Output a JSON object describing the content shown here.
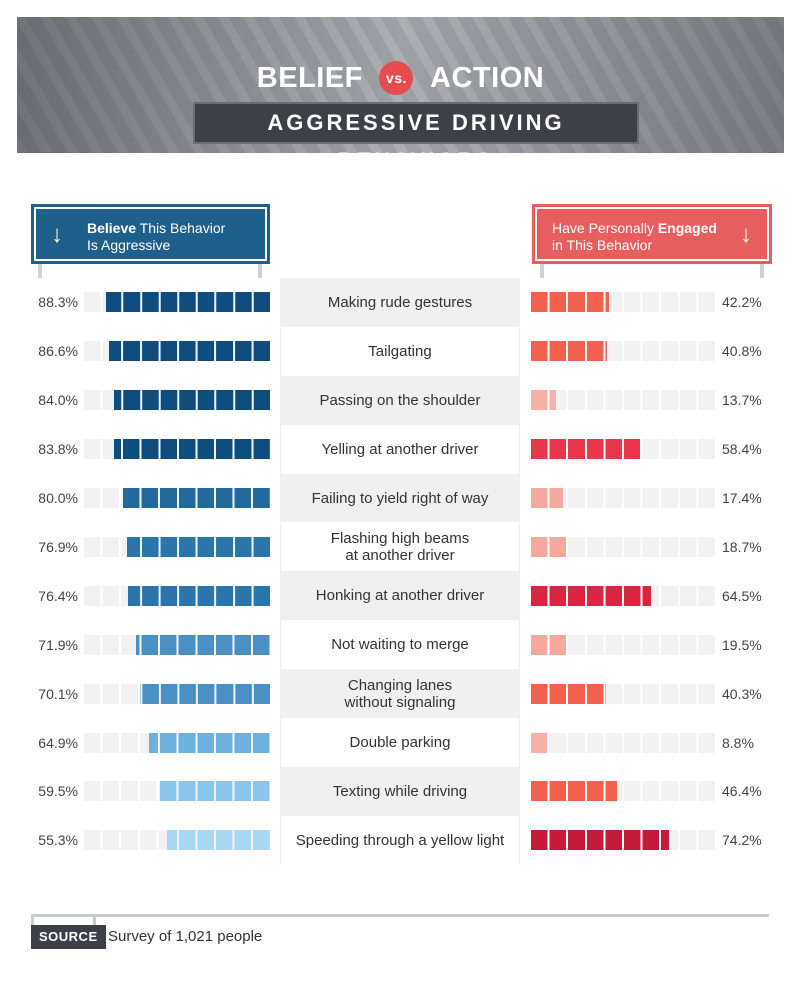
{
  "header": {
    "title_left": "BELIEF",
    "vs": "vs.",
    "title_right": "ACTION",
    "subtitle": "AGGRESSIVE DRIVING BEHAVIORS"
  },
  "signs": {
    "left_bold": "Believe",
    "left_rest_1": " This Behavior",
    "left_line2": "Is Aggressive",
    "right_line1_pre": "Have Personally ",
    "right_bold": "Engaged",
    "right_line2": "in This Behavior",
    "arrow": "↓"
  },
  "source": {
    "label": "SOURCE",
    "text": "Survey of 1,021 people"
  },
  "chart_data": {
    "type": "bar",
    "categories": [
      "Making rude gestures",
      "Tailgating",
      "Passing on the shoulder",
      "Yelling at another driver",
      "Failing to yield right of way",
      "Flashing high beams\nat another driver",
      "Honking at another driver",
      "Not waiting to merge",
      "Changing lanes\nwithout signaling",
      "Double parking",
      "Texting while driving",
      "Speeding through a yellow light"
    ],
    "series": [
      {
        "name": "Believe This Behavior Is Aggressive",
        "values": [
          88.3,
          86.6,
          84.0,
          83.8,
          80.0,
          76.9,
          76.4,
          71.9,
          70.1,
          64.9,
          59.5,
          55.3
        ],
        "labels": [
          "88.3%",
          "86.6%",
          "84.0%",
          "83.8%",
          "80.0%",
          "76.9%",
          "76.4%",
          "71.9%",
          "70.1%",
          "64.9%",
          "59.5%",
          "55.3%"
        ]
      },
      {
        "name": "Have Personally Engaged in This Behavior",
        "values": [
          42.2,
          40.8,
          13.7,
          58.4,
          17.4,
          18.7,
          64.5,
          19.5,
          40.3,
          8.8,
          46.4,
          74.2
        ],
        "labels": [
          "42.2%",
          "40.8%",
          "13.7%",
          "58.4%",
          "17.4%",
          "18.7%",
          "64.5%",
          "19.5%",
          "40.3%",
          "8.8%",
          "46.4%",
          "74.2%"
        ]
      }
    ],
    "xlim": [
      0,
      100
    ],
    "colors": {
      "left": [
        "#0f4d7e",
        "#0f4d7e",
        "#0f4d7e",
        "#0f4d7e",
        "#226a9c",
        "#2a76aa",
        "#2a76aa",
        "#4a90c2",
        "#4a90c2",
        "#6fb1de",
        "#8ac6ea",
        "#a9d8f2"
      ],
      "right": [
        "#f2604f",
        "#f2604f",
        "#f7b1a8",
        "#e8364b",
        "#f5a99d",
        "#f5a99d",
        "#d92540",
        "#f5a99d",
        "#f2604f",
        "#f7b1a8",
        "#f2604f",
        "#c41a3b"
      ]
    }
  }
}
